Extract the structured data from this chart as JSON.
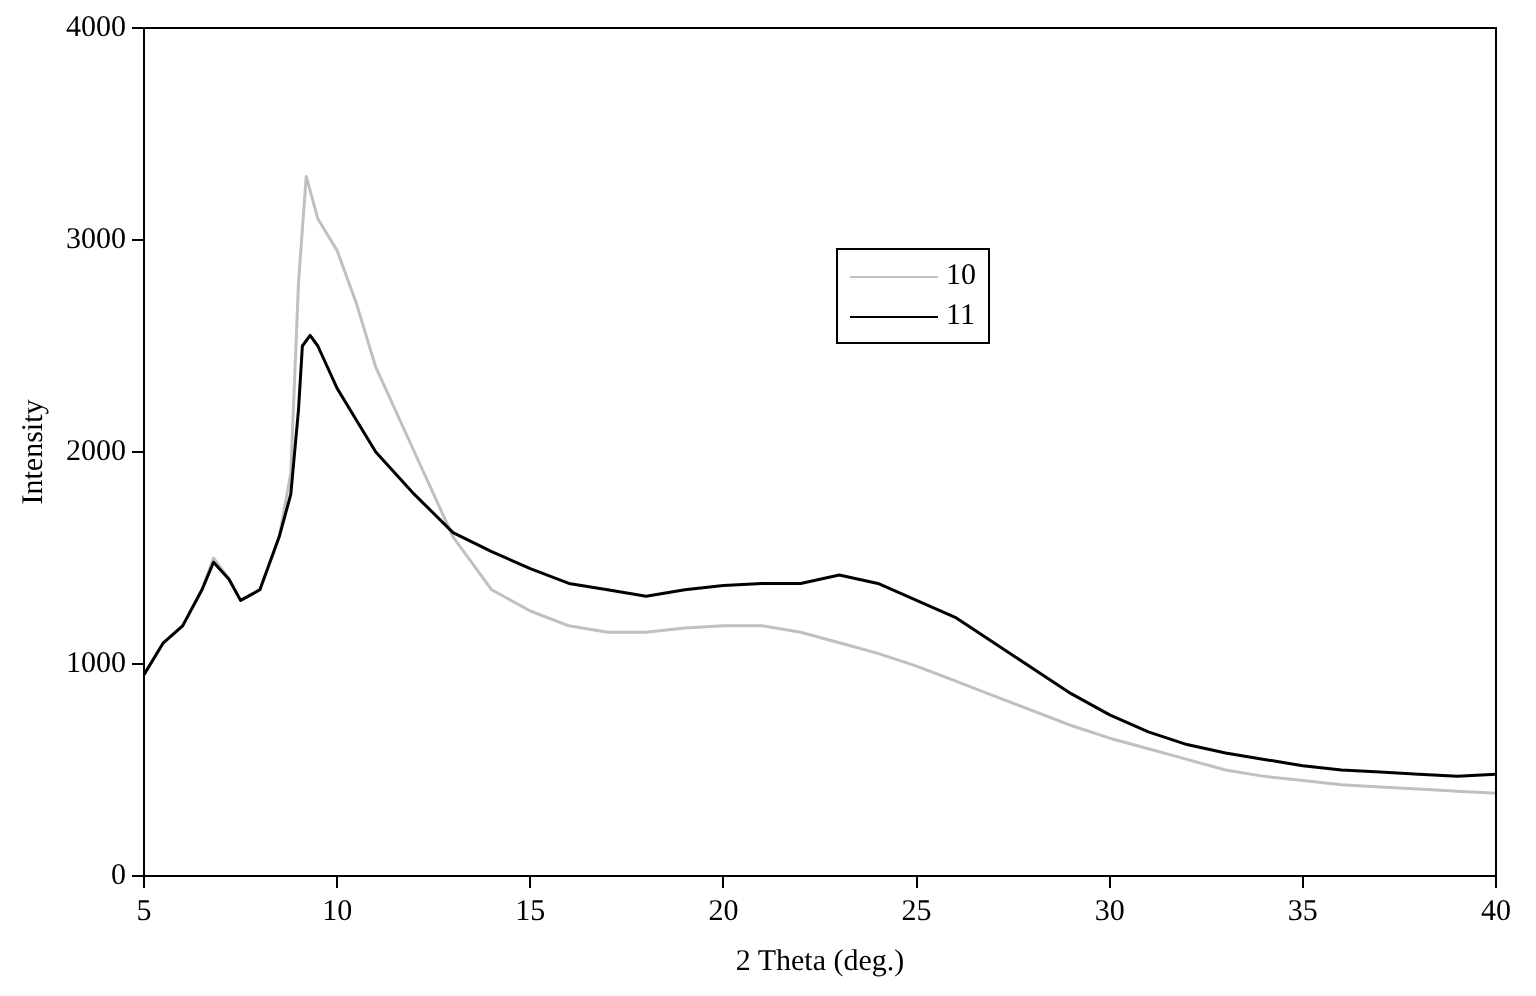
{
  "chart_data": {
    "type": "line",
    "xlabel": "2 Theta (deg.)",
    "ylabel": "Intensity",
    "xlim": [
      5,
      40
    ],
    "xticks": [
      5,
      10,
      15,
      20,
      25,
      30,
      35,
      40
    ],
    "ylim": [
      0,
      4000
    ],
    "yticks": [
      0,
      1000,
      2000,
      3000,
      4000
    ],
    "grid": false,
    "legend": "top right",
    "marker": "none",
    "line_style": "solid",
    "series": [
      {
        "name": "10",
        "color": "#c0c0c0",
        "x": [
          5,
          5.5,
          6,
          6.5,
          6.8,
          7.2,
          7.5,
          8,
          8.5,
          8.8,
          9,
          9.2,
          9.5,
          10,
          10.5,
          11,
          12,
          13,
          14,
          15,
          16,
          17,
          18,
          19,
          20,
          21,
          22,
          23,
          24,
          25,
          26,
          27,
          28,
          29,
          30,
          31,
          32,
          33,
          34,
          35,
          36,
          37,
          38,
          39,
          40
        ],
        "values": [
          950,
          1100,
          1180,
          1350,
          1500,
          1400,
          1300,
          1350,
          1600,
          1900,
          2800,
          3300,
          3100,
          2950,
          2700,
          2400,
          2000,
          1600,
          1350,
          1250,
          1180,
          1150,
          1150,
          1170,
          1180,
          1180,
          1150,
          1100,
          1050,
          990,
          920,
          850,
          780,
          710,
          650,
          600,
          550,
          500,
          470,
          450,
          430,
          420,
          410,
          400,
          390
        ]
      },
      {
        "name": "11",
        "color": "#000000",
        "x": [
          5,
          5.5,
          6,
          6.5,
          6.8,
          7.2,
          7.5,
          8,
          8.5,
          8.8,
          9,
          9.1,
          9.3,
          9.5,
          10,
          10.5,
          11,
          12,
          13,
          14,
          15,
          16,
          17,
          18,
          19,
          20,
          21,
          22,
          23,
          24,
          25,
          26,
          27,
          28,
          29,
          30,
          31,
          32,
          33,
          34,
          35,
          36,
          37,
          38,
          39,
          40
        ],
        "values": [
          950,
          1100,
          1180,
          1350,
          1480,
          1400,
          1300,
          1350,
          1600,
          1800,
          2200,
          2500,
          2550,
          2500,
          2300,
          2150,
          2000,
          1800,
          1620,
          1530,
          1450,
          1380,
          1350,
          1320,
          1350,
          1370,
          1380,
          1380,
          1420,
          1380,
          1300,
          1220,
          1100,
          980,
          860,
          760,
          680,
          620,
          580,
          550,
          520,
          500,
          490,
          480,
          470,
          480
        ]
      }
    ]
  }
}
